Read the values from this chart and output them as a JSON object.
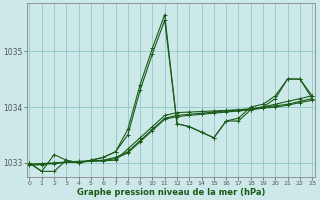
{
  "title": "Graphe pression niveau de la mer (hPa)",
  "bg_color": "#cce8e8",
  "grid_color": "#99cccc",
  "line_color": "#1a5c1a",
  "x_min": 0,
  "x_max": 23,
  "y_min": 1032.75,
  "y_max": 1035.85,
  "yticks": [
    1033,
    1034,
    1035
  ],
  "xticks": [
    0,
    1,
    2,
    3,
    4,
    5,
    6,
    7,
    8,
    9,
    10,
    11,
    12,
    13,
    14,
    15,
    16,
    17,
    18,
    19,
    20,
    21,
    22,
    23
  ],
  "series": [
    [
      1033.0,
      1032.85,
      1032.85,
      1033.05,
      1033.0,
      1033.05,
      1033.1,
      1033.2,
      1033.5,
      1034.3,
      1034.95,
      1035.55,
      1033.7,
      1033.65,
      1033.55,
      1033.45,
      1033.75,
      1033.75,
      1033.95,
      1034.0,
      1034.15,
      1034.5,
      1034.5,
      1034.15
    ],
    [
      1033.0,
      1032.85,
      1033.15,
      1033.05,
      1033.0,
      1033.05,
      1033.1,
      1033.2,
      1033.6,
      1034.4,
      1035.05,
      1035.65,
      1033.7,
      1033.65,
      1033.55,
      1033.45,
      1033.75,
      1033.8,
      1034.0,
      1034.05,
      1034.2,
      1034.5,
      1034.5,
      1034.2
    ],
    [
      1032.98,
      1032.99,
      1033.0,
      1033.01,
      1033.02,
      1033.03,
      1033.04,
      1033.05,
      1033.25,
      1033.45,
      1033.65,
      1033.85,
      1033.9,
      1033.91,
      1033.92,
      1033.93,
      1033.94,
      1033.95,
      1033.96,
      1034.0,
      1034.05,
      1034.1,
      1034.15,
      1034.2
    ],
    [
      1032.97,
      1032.98,
      1033.0,
      1033.02,
      1033.03,
      1033.04,
      1033.05,
      1033.1,
      1033.2,
      1033.4,
      1033.6,
      1033.8,
      1033.85,
      1033.87,
      1033.89,
      1033.91,
      1033.93,
      1033.95,
      1033.97,
      1034.0,
      1034.02,
      1034.05,
      1034.1,
      1034.15
    ],
    [
      1032.96,
      1032.97,
      1032.99,
      1033.01,
      1033.02,
      1033.03,
      1033.04,
      1033.08,
      1033.18,
      1033.38,
      1033.58,
      1033.78,
      1033.83,
      1033.85,
      1033.87,
      1033.89,
      1033.91,
      1033.93,
      1033.95,
      1033.98,
      1034.0,
      1034.03,
      1034.08,
      1034.12
    ]
  ]
}
